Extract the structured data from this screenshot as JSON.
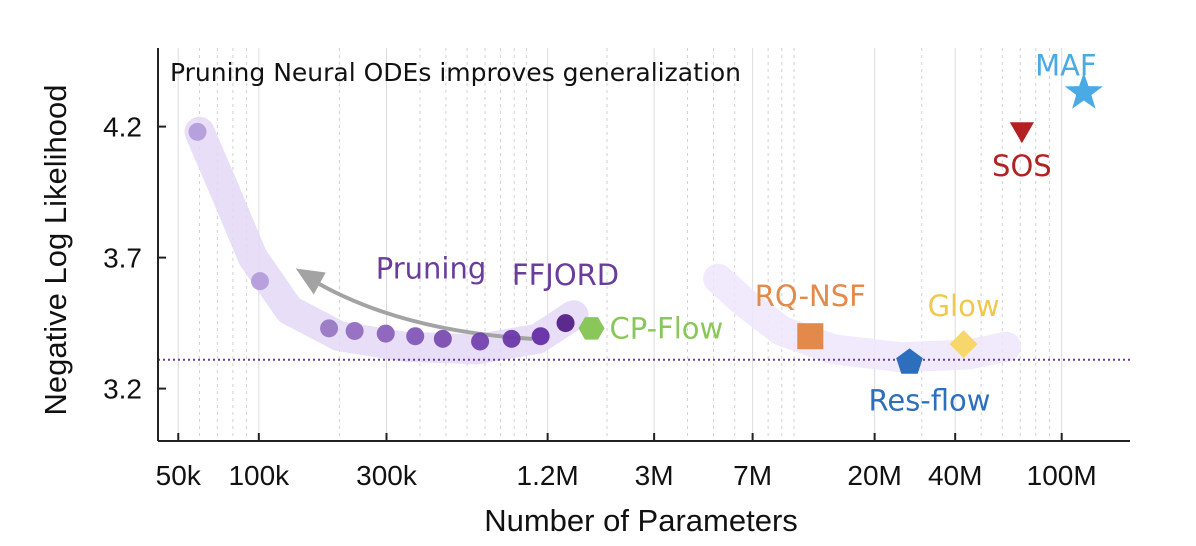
{
  "chart_data": {
    "type": "scatter",
    "title": "Pruning Neural ODEs improves generalization",
    "xlabel": "Number of Parameters",
    "ylabel": "Negative Log Likelihood",
    "x_scale": "log",
    "xlim": [
      42000,
      180000000
    ],
    "ylim": [
      3.0,
      4.5
    ],
    "x_ticks": [
      {
        "value": 50000,
        "label": "50k"
      },
      {
        "value": 100000,
        "label": "100k"
      },
      {
        "value": 300000,
        "label": "300k"
      },
      {
        "value": 1200000,
        "label": "1.2M"
      },
      {
        "value": 3000000,
        "label": "3M"
      },
      {
        "value": 7000000,
        "label": "7M"
      },
      {
        "value": 20000000,
        "label": "20M"
      },
      {
        "value": 40000000,
        "label": "40M"
      },
      {
        "value": 100000000,
        "label": "100M"
      }
    ],
    "y_ticks": [
      {
        "value": 4.2,
        "label": "4.2"
      },
      {
        "value": 3.7,
        "label": "3.7"
      },
      {
        "value": 3.2,
        "label": "3.2"
      }
    ],
    "grid": true,
    "reference_line": {
      "y": 3.31,
      "color": "#6a3d9a",
      "style": "dotted"
    },
    "pruning_series": {
      "color": "#b49ddb",
      "points": [
        {
          "x": 59000,
          "y": 4.18
        },
        {
          "x": 101000,
          "y": 3.61
        },
        {
          "x": 183000,
          "y": 3.43
        },
        {
          "x": 228000,
          "y": 3.42
        },
        {
          "x": 298000,
          "y": 3.41
        },
        {
          "x": 384000,
          "y": 3.4
        },
        {
          "x": 487000,
          "y": 3.39
        },
        {
          "x": 671000,
          "y": 3.38
        },
        {
          "x": 880000,
          "y": 3.39
        },
        {
          "x": 1130000,
          "y": 3.4
        }
      ]
    },
    "annotations": [
      {
        "text": "Pruning",
        "color": "#6a3d9a"
      }
    ],
    "models": [
      {
        "name": "FFJORD",
        "x": 1400000,
        "y": 3.45,
        "marker": "circle",
        "color": "#5b2a8c",
        "label_color": "#6a3d9a",
        "label_pos": "above"
      },
      {
        "name": "CP-Flow",
        "x": 1750000,
        "y": 3.43,
        "marker": "hexagon",
        "color": "#8ac75a",
        "label_color": "#8ac75a",
        "label_pos": "right"
      },
      {
        "name": "RQ-NSF",
        "x": 11500000,
        "y": 3.4,
        "marker": "square",
        "color": "#e3894a",
        "label_color": "#e3894a",
        "label_pos": "above"
      },
      {
        "name": "Res-flow",
        "x": 27000000,
        "y": 3.3,
        "marker": "pentagon",
        "color": "#2e6fbd",
        "label_color": "#2e6fbd",
        "label_pos": "below"
      },
      {
        "name": "Glow",
        "x": 43000000,
        "y": 3.37,
        "marker": "diamond",
        "color": "#f7d76b",
        "label_color": "#f0c850",
        "label_pos": "above"
      },
      {
        "name": "SOS",
        "x": 71000000,
        "y": 4.19,
        "marker": "triangle-down",
        "color": "#b22222",
        "label_color": "#b22222",
        "label_pos": "below"
      },
      {
        "name": "MAF",
        "x": 121000000,
        "y": 4.33,
        "marker": "star",
        "color": "#4aaae3",
        "label_color": "#4aaae3",
        "label_pos": "above"
      }
    ]
  }
}
